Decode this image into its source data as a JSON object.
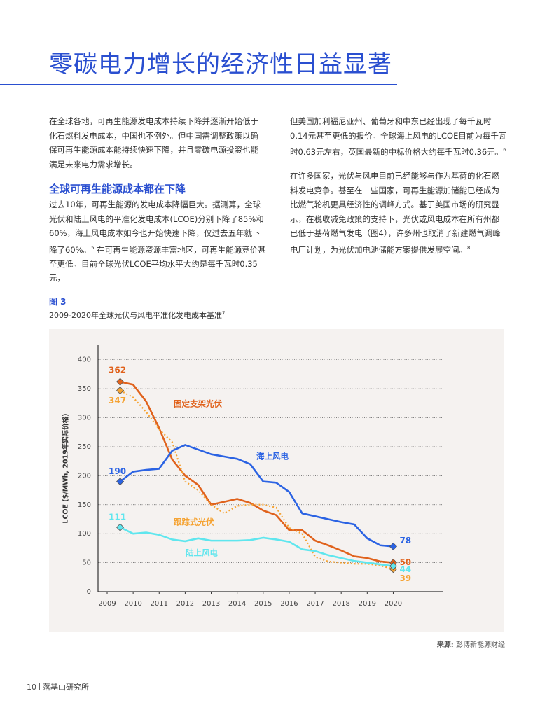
{
  "header": {
    "title": "零碳电力增长的经济性日益显著"
  },
  "text": {
    "p1": "在全球各地，可再生能源发电成本持续下降并逐渐开始低于化石燃料发电成本，中国也不例外。但中国需调整政策以确保可再生能源成本能持续快速下降，并且零碳电源投资也能满足未来电力需求增长。",
    "heading": "全球可再生能源成本都在下降",
    "p2a": "过去10年，可再生能源的发电成本降幅巨大。据测算，全球光伏和陆上风电的平准化发电成本(LCOE)分别下降了85%和60%，海上风电成本如今也开始快速下降，仅过去五年就下降了60%。",
    "p2_sup": "5",
    "p2b": " 在可再生能源资源丰富地区，可再生能源竞价甚至更低。目前全球光伏LCOE平均水平大约是每千瓦时0.35元，",
    "p3": "但美国加利福尼亚州、葡萄牙和中东已经出现了每千瓦时0.14元甚至更低的报价。全球海上风电的LCOE目前为每千瓦时0.63元左右，英国最新的中标价格大约每千瓦时0.36元。",
    "p3_sup": "6",
    "p4": "在许多国家，光伏与风电目前已经能够与作为基荷的化石燃料发电竞争。甚至在一些国家，可再生能源加储能已经成为比燃气轮机更具经济性的调峰方式。基于美国市场的研究显示，在税收减免政策的支持下，光伏或风电成本在所有州都已低于基荷燃气发电（图4），许多州也取消了新建燃气调峰电厂计划，为光伏加电池储能方案提供发展空间。",
    "p4_sup": "8"
  },
  "figure": {
    "label": "图 3",
    "caption": "2009-2020年全球光伏与风电平准化发电成本基准",
    "caption_sup": "7",
    "source_label": "来源:",
    "source": "彭博新能源财经"
  },
  "footer": {
    "page": "10",
    "org": "落基山研究所"
  },
  "chart_data": {
    "type": "line",
    "y_label": "LCOE ($/MWh, 2019年实际价格)",
    "x": [
      2009.5,
      2010,
      2010.5,
      2011,
      2011.5,
      2012,
      2012.5,
      2013,
      2013.5,
      2014,
      2014.5,
      2015,
      2015.5,
      2016,
      2016.5,
      2017,
      2017.5,
      2018,
      2018.5,
      2019,
      2019.5,
      2020
    ],
    "xlim": [
      2008.65,
      2021.9
    ],
    "xticks": [
      2009,
      2010,
      2011,
      2012,
      2013,
      2014,
      2015,
      2016,
      2017,
      2018,
      2019,
      2020
    ],
    "ylim": [
      0,
      425
    ],
    "yticks": [
      0,
      50,
      100,
      150,
      200,
      250,
      300,
      350,
      400
    ],
    "grid": true,
    "series": [
      {
        "name": "固定支架光伏",
        "color": "#e0621c",
        "style": "solid",
        "values": [
          362,
          357,
          328,
          282,
          228,
          200,
          184,
          150,
          155,
          160,
          153,
          140,
          132,
          106,
          106,
          88,
          80,
          71,
          61,
          58,
          52,
          50
        ]
      },
      {
        "name": "跟踪式光伏",
        "color": "#f5a333",
        "style": "dotted",
        "values": [
          347,
          335,
          310,
          280,
          258,
          190,
          175,
          150,
          135,
          148,
          150,
          150,
          145,
          110,
          100,
          60,
          52,
          50,
          48,
          48,
          45,
          39
        ]
      },
      {
        "name": "海上风电",
        "color": "#2b63e3",
        "style": "solid",
        "values": [
          190,
          207,
          210,
          212,
          243,
          253,
          245,
          237,
          233,
          229,
          220,
          190,
          188,
          172,
          135,
          130,
          125,
          120,
          116,
          92,
          80,
          78
        ]
      },
      {
        "name": "陆上风电",
        "color": "#5fe6ee",
        "style": "solid",
        "values": [
          111,
          100,
          102,
          98,
          90,
          87,
          92,
          88,
          88,
          88,
          89,
          93,
          90,
          86,
          73,
          70,
          63,
          58,
          53,
          50,
          47,
          44
        ]
      }
    ]
  }
}
